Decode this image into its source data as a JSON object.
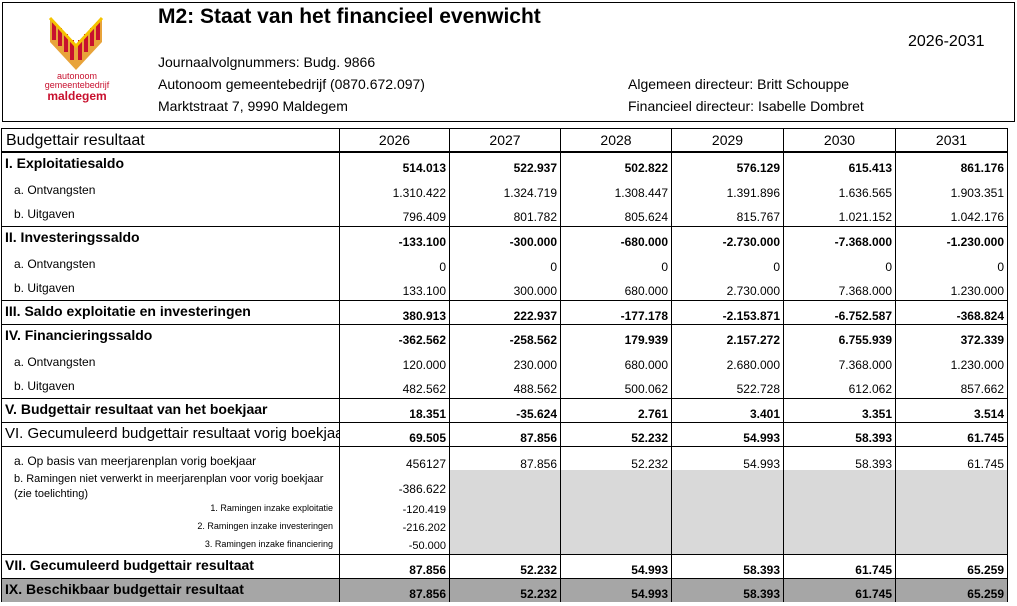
{
  "header": {
    "title": "M2: Staat van het financieel evenwicht",
    "period": "2026-2031",
    "logo": [
      "autonoom",
      "gemeentebedrijf",
      "maldegem"
    ],
    "left_lines": [
      "Journaalvolgnummers: Budg. 9866",
      "Autonoom gemeentebedrijf (0870.672.097)",
      "Marktstraat 7, 9990 Maldegem"
    ],
    "right_lines": [
      "Algemeen directeur: Britt Schouppe",
      "Financieel directeur: Isabelle Dombret"
    ]
  },
  "table": {
    "header": [
      "Budgettair resultaat",
      "2026",
      "2027",
      "2028",
      "2029",
      "2030",
      "2031"
    ],
    "rows": [
      [
        "I. Exploitatiesaldo",
        "514.013",
        "522.937",
        "502.822",
        "576.129",
        "615.413",
        "861.176"
      ],
      [
        "a. Ontvangsten",
        "1.310.422",
        "1.324.719",
        "1.308.447",
        "1.391.896",
        "1.636.565",
        "1.903.351"
      ],
      [
        "b. Uitgaven",
        "796.409",
        "801.782",
        "805.624",
        "815.767",
        "1.021.152",
        "1.042.176"
      ],
      [
        "II. Investeringssaldo",
        "-133.100",
        "-300.000",
        "-680.000",
        "-2.730.000",
        "-7.368.000",
        "-1.230.000"
      ],
      [
        "a. Ontvangsten",
        "0",
        "0",
        "0",
        "0",
        "0",
        "0"
      ],
      [
        "b. Uitgaven",
        "133.100",
        "300.000",
        "680.000",
        "2.730.000",
        "7.368.000",
        "1.230.000"
      ],
      [
        "III. Saldo exploitatie en investeringen",
        "380.913",
        "222.937",
        "-177.178",
        "-2.153.871",
        "-6.752.587",
        "-368.824"
      ],
      [
        "IV. Financieringssaldo",
        "-362.562",
        "-258.562",
        "179.939",
        "2.157.272",
        "6.755.939",
        "372.339"
      ],
      [
        "a. Ontvangsten",
        "120.000",
        "230.000",
        "680.000",
        "2.680.000",
        "7.368.000",
        "1.230.000"
      ],
      [
        "b. Uitgaven",
        "482.562",
        "488.562",
        "500.062",
        "522.728",
        "612.062",
        "857.662"
      ],
      [
        "V. Budgettair resultaat van het boekjaar",
        "18.351",
        "-35.624",
        "2.761",
        "3.401",
        "3.351",
        "3.514"
      ],
      [
        "VI. Gecumuleerd budgettair resultaat vorig boekjaar",
        "69.505",
        "87.856",
        "52.232",
        "54.993",
        "58.393",
        "61.745"
      ],
      [
        "a. Op basis van meerjarenplan vorig boekjaar",
        "456127",
        "87.856",
        "52.232",
        "54.993",
        "58.393",
        "61.745"
      ],
      [
        "b. Ramingen niet verwerkt in meerjarenplan voor vorig boekjaar (zie toelichting)",
        "-386.622"
      ],
      [
        "1. Ramingen inzake exploitatie",
        "-120.419"
      ],
      [
        "2. Ramingen inzake investeringen",
        "-216.202"
      ],
      [
        "3. Ramingen inzake financiering",
        "-50.000"
      ],
      [
        "VII. Gecumuleerd budgettair resultaat",
        "87.856",
        "52.232",
        "54.993",
        "58.393",
        "61.745",
        "65.259"
      ],
      [
        "IX. Beschikbaar budgettair resultaat",
        "87.856",
        "52.232",
        "54.993",
        "58.393",
        "61.745",
        "65.259"
      ]
    ]
  }
}
